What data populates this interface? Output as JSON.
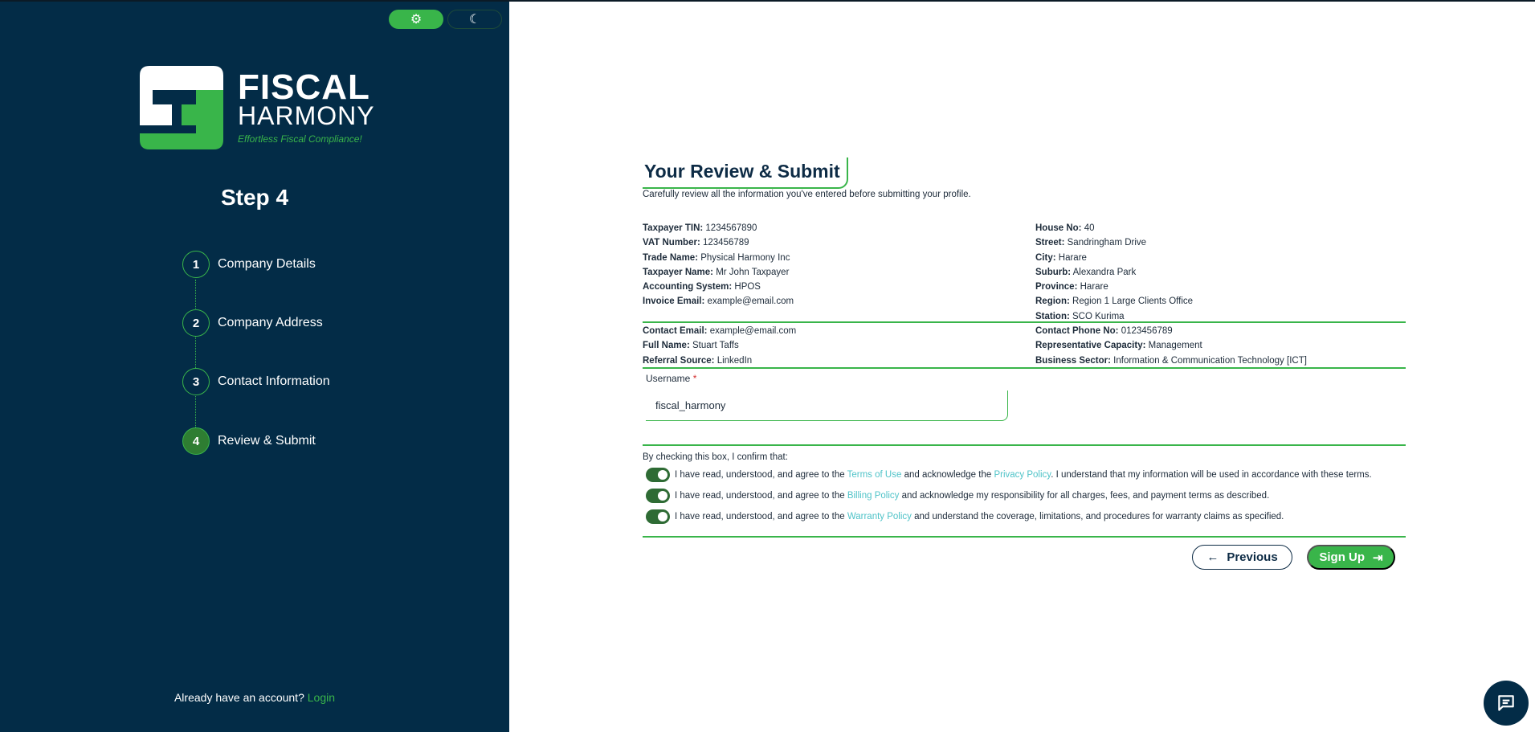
{
  "sidebar": {
    "theme_light_icon": "sun-gear-icon",
    "theme_dark_icon": "moon-icon",
    "brand_line1": "FISCAL",
    "brand_line2": "HARMONY",
    "tagline": "Effortless Fiscal Compliance!",
    "step_title": "Step 4",
    "steps": [
      {
        "num": "1",
        "label": "Company Details"
      },
      {
        "num": "2",
        "label": "Company Address"
      },
      {
        "num": "3",
        "label": "Contact Information"
      },
      {
        "num": "4",
        "label": "Review & Submit"
      }
    ],
    "active_step": 4,
    "login_prompt": "Already have an account?",
    "login_link": "Login"
  },
  "main": {
    "title": "Your Review & Submit",
    "subtitle": "Carefully review all the information you've entered before submitting your profile.",
    "left1": [
      {
        "k": "Taxpayer TIN:",
        "v": "1234567890"
      },
      {
        "k": "VAT Number:",
        "v": "123456789"
      },
      {
        "k": "Trade Name:",
        "v": "Physical Harmony Inc"
      },
      {
        "k": "Taxpayer Name:",
        "v": "Mr John Taxpayer"
      },
      {
        "k": "Accounting System:",
        "v": "HPOS"
      },
      {
        "k": "Invoice Email:",
        "v": "example@email.com"
      }
    ],
    "right1": [
      {
        "k": "House No:",
        "v": "40"
      },
      {
        "k": "Street:",
        "v": "Sandringham Drive"
      },
      {
        "k": "City:",
        "v": "Harare"
      },
      {
        "k": "Suburb:",
        "v": "Alexandra Park"
      },
      {
        "k": "Province:",
        "v": "Harare"
      },
      {
        "k": "Region:",
        "v": "Region 1 Large Clients Office"
      },
      {
        "k": "Station:",
        "v": "SCO Kurima"
      }
    ],
    "left2": [
      {
        "k": "Contact Email:",
        "v": "example@email.com"
      },
      {
        "k": "Full Name:",
        "v": "Stuart Taffs"
      },
      {
        "k": "Referral Source:",
        "v": "LinkedIn"
      }
    ],
    "right2": [
      {
        "k": "Contact Phone No:",
        "v": "0123456789"
      },
      {
        "k": "Representative Capacity:",
        "v": "Management"
      },
      {
        "k": "Business Sector:",
        "v": "Information & Communication Technology [ICT]"
      }
    ],
    "username_label": "Username",
    "required_mark": "*",
    "username_value": "fiscal_harmony",
    "confirm_intro": "By checking this box, I confirm that:",
    "agree1": {
      "a": "I have read, understood, and agree to the ",
      "l1": "Terms of Use",
      "b": " and acknowledge the ",
      "l2": "Privacy Policy",
      "c": ". I understand that my information will be used in accordance with these terms."
    },
    "agree2": {
      "a": "I have read, understood, and agree to the ",
      "l1": "Billing Policy",
      "b": " and acknowledge my responsibility for all charges, fees, and payment terms as described."
    },
    "agree3": {
      "a": "I have read, understood, and agree to the ",
      "l1": "Warranty Policy",
      "b": " and understand the coverage, limitations, and procedures for warranty claims as specified."
    },
    "toggles_checked": [
      true,
      true,
      true
    ],
    "previous_label": "Previous",
    "signup_label": "Sign Up"
  },
  "colors": {
    "sidebar": "#032c47",
    "accent": "#39b54a",
    "link": "#4fc3c8",
    "active_step": "#2e7d32"
  }
}
